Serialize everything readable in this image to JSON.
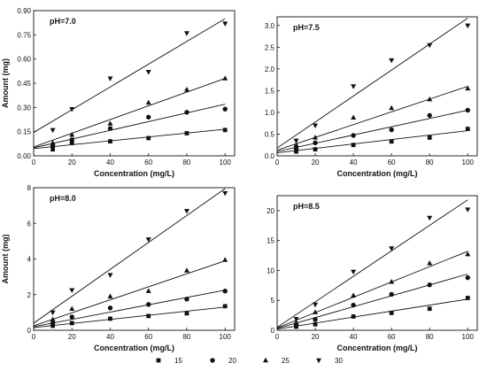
{
  "chart_data": [
    {
      "type": "scatter",
      "annotation": "pH=7.0",
      "xlabel": "Concentration (mg/L)",
      "ylabel": "Amount (mg)",
      "xlim": [
        0,
        105
      ],
      "ylim": [
        0,
        0.9
      ],
      "xticks": [
        0,
        20,
        40,
        60,
        80,
        100
      ],
      "xtick_labels": [
        "0",
        "20",
        "40",
        "60",
        "80",
        "100"
      ],
      "yticks": [
        0,
        0.15,
        0.3,
        0.45,
        0.6,
        0.75,
        0.9
      ],
      "ytick_labels": [
        "0.00",
        "0.15",
        "0.30",
        "0.45",
        "0.60",
        "0.75",
        "0.90"
      ],
      "series": [
        {
          "name": "15",
          "marker": "square",
          "x": [
            10,
            20,
            40,
            60,
            80,
            100
          ],
          "y": [
            0.04,
            0.08,
            0.09,
            0.11,
            0.14,
            0.16
          ],
          "fit": [
            [
              0,
              0.045
            ],
            [
              100,
              0.165
            ]
          ]
        },
        {
          "name": "20",
          "marker": "circle",
          "x": [
            10,
            20,
            40,
            60,
            80,
            100
          ],
          "y": [
            0.06,
            0.1,
            0.17,
            0.24,
            0.27,
            0.29
          ],
          "fit": [
            [
              0,
              0.05
            ],
            [
              100,
              0.32
            ]
          ]
        },
        {
          "name": "25",
          "marker": "triangle-up",
          "x": [
            10,
            20,
            40,
            60,
            80,
            100
          ],
          "y": [
            0.08,
            0.13,
            0.2,
            0.33,
            0.41,
            0.48
          ],
          "fit": [
            [
              0,
              0.055
            ],
            [
              100,
              0.48
            ]
          ]
        },
        {
          "name": "30",
          "marker": "triangle-down",
          "x": [
            10,
            20,
            40,
            60,
            80,
            100
          ],
          "y": [
            0.16,
            0.29,
            0.48,
            0.52,
            0.76,
            0.82
          ],
          "fit": [
            [
              0,
              0.145
            ],
            [
              100,
              0.85
            ]
          ]
        }
      ]
    },
    {
      "type": "scatter",
      "annotation": "pH=7.5",
      "xlabel": "Concentration (mg/L)",
      "ylabel": "",
      "xlim": [
        0,
        105
      ],
      "ylim": [
        0,
        3.2
      ],
      "xticks": [
        0,
        20,
        40,
        60,
        80,
        100
      ],
      "xtick_labels": [
        "0",
        "20",
        "40",
        "60",
        "80",
        "100"
      ],
      "yticks": [
        0,
        0.5,
        1.0,
        1.5,
        2.0,
        2.5,
        3.0
      ],
      "ytick_labels": [
        "0.0",
        "0.5",
        "1.0",
        "1.5",
        "2.0",
        "2.5",
        "3.0"
      ],
      "series": [
        {
          "name": "15",
          "marker": "square",
          "x": [
            10,
            20,
            40,
            60,
            80,
            100
          ],
          "y": [
            0.1,
            0.15,
            0.25,
            0.33,
            0.42,
            0.62
          ],
          "fit": [
            [
              0,
              0.07
            ],
            [
              100,
              0.58
            ]
          ]
        },
        {
          "name": "20",
          "marker": "circle",
          "x": [
            10,
            20,
            40,
            60,
            80,
            100
          ],
          "y": [
            0.17,
            0.3,
            0.47,
            0.6,
            0.93,
            1.05
          ],
          "fit": [
            [
              0,
              0.1
            ],
            [
              100,
              1.05
            ]
          ]
        },
        {
          "name": "25",
          "marker": "triangle-up",
          "x": [
            10,
            20,
            40,
            60,
            80,
            100
          ],
          "y": [
            0.25,
            0.42,
            0.88,
            1.1,
            1.3,
            1.55
          ],
          "fit": [
            [
              0,
              0.13
            ],
            [
              100,
              1.6
            ]
          ]
        },
        {
          "name": "30",
          "marker": "triangle-down",
          "x": [
            10,
            20,
            40,
            60,
            80,
            100
          ],
          "y": [
            0.35,
            0.7,
            1.6,
            2.2,
            2.55,
            3.0
          ],
          "fit": [
            [
              0,
              0.18
            ],
            [
              100,
              3.17
            ]
          ]
        }
      ]
    },
    {
      "type": "scatter",
      "annotation": "pH=8.0",
      "xlabel": "Concentration (mg/L)",
      "ylabel": "Amount (mg)",
      "xlim": [
        0,
        105
      ],
      "ylim": [
        0,
        8
      ],
      "xticks": [
        0,
        20,
        40,
        60,
        80,
        100
      ],
      "xtick_labels": [
        "0",
        "20",
        "40",
        "60",
        "80",
        "100"
      ],
      "yticks": [
        0,
        2,
        4,
        6,
        8
      ],
      "ytick_labels": [
        "0",
        "2",
        "4",
        "6",
        "8"
      ],
      "series": [
        {
          "name": "15",
          "marker": "square",
          "x": [
            10,
            20,
            40,
            60,
            80,
            100
          ],
          "y": [
            0.25,
            0.4,
            0.65,
            0.8,
            0.95,
            1.35
          ],
          "fit": [
            [
              0,
              0.15
            ],
            [
              100,
              1.3
            ]
          ]
        },
        {
          "name": "20",
          "marker": "circle",
          "x": [
            10,
            20,
            40,
            60,
            80,
            100
          ],
          "y": [
            0.4,
            0.75,
            1.25,
            1.45,
            1.75,
            2.2
          ],
          "fit": [
            [
              0,
              0.2
            ],
            [
              100,
              2.25
            ]
          ]
        },
        {
          "name": "25",
          "marker": "triangle-up",
          "x": [
            10,
            20,
            40,
            60,
            80,
            100
          ],
          "y": [
            0.6,
            1.2,
            1.9,
            2.2,
            3.35,
            3.95
          ],
          "fit": [
            [
              0,
              0.25
            ],
            [
              100,
              3.9
            ]
          ]
        },
        {
          "name": "30",
          "marker": "triangle-down",
          "x": [
            10,
            20,
            40,
            60,
            80,
            100
          ],
          "y": [
            1.0,
            2.25,
            3.1,
            5.1,
            6.7,
            7.7
          ],
          "fit": [
            [
              0,
              0.4
            ],
            [
              100,
              7.95
            ]
          ]
        }
      ]
    },
    {
      "type": "scatter",
      "annotation": "pH=8.5",
      "xlabel": "Concentration (mg/L)",
      "ylabel": "",
      "xlim": [
        0,
        105
      ],
      "ylim": [
        0,
        22.5
      ],
      "xticks": [
        0,
        20,
        40,
        60,
        80,
        100
      ],
      "xtick_labels": [
        "0",
        "20",
        "40",
        "60",
        "80",
        "100"
      ],
      "yticks": [
        0,
        5,
        10,
        15,
        20
      ],
      "ytick_labels": [
        "0",
        "5",
        "10",
        "15",
        "20"
      ],
      "series": [
        {
          "name": "15",
          "marker": "square",
          "x": [
            10,
            20,
            40,
            60,
            80,
            100
          ],
          "y": [
            0.6,
            1.0,
            2.3,
            2.9,
            3.6,
            5.4
          ],
          "fit": [
            [
              0,
              0.2
            ],
            [
              100,
              5.2
            ]
          ]
        },
        {
          "name": "20",
          "marker": "circle",
          "x": [
            10,
            20,
            40,
            60,
            80,
            100
          ],
          "y": [
            0.9,
            1.8,
            4.2,
            6.0,
            7.6,
            8.8
          ],
          "fit": [
            [
              0,
              0.3
            ],
            [
              100,
              9.4
            ]
          ]
        },
        {
          "name": "25",
          "marker": "triangle-up",
          "x": [
            10,
            20,
            40,
            60,
            80,
            100
          ],
          "y": [
            1.3,
            3.0,
            5.8,
            8.1,
            11.2,
            12.7
          ],
          "fit": [
            [
              0,
              0.4
            ],
            [
              100,
              13.2
            ]
          ]
        },
        {
          "name": "30",
          "marker": "triangle-down",
          "x": [
            10,
            20,
            40,
            60,
            80,
            100
          ],
          "y": [
            1.9,
            4.3,
            9.8,
            13.7,
            18.8,
            20.2
          ],
          "fit": [
            [
              0,
              0.5
            ],
            [
              100,
              21.8
            ]
          ]
        }
      ]
    }
  ],
  "legend": {
    "placement": "bottom-center",
    "items": [
      {
        "label": "15",
        "marker": "square"
      },
      {
        "label": "20",
        "marker": "circle"
      },
      {
        "label": "25",
        "marker": "triangle-up"
      },
      {
        "label": "30",
        "marker": "triangle-down"
      }
    ]
  },
  "colors": {
    "ink": "#111111",
    "background": "#ffffff"
  }
}
